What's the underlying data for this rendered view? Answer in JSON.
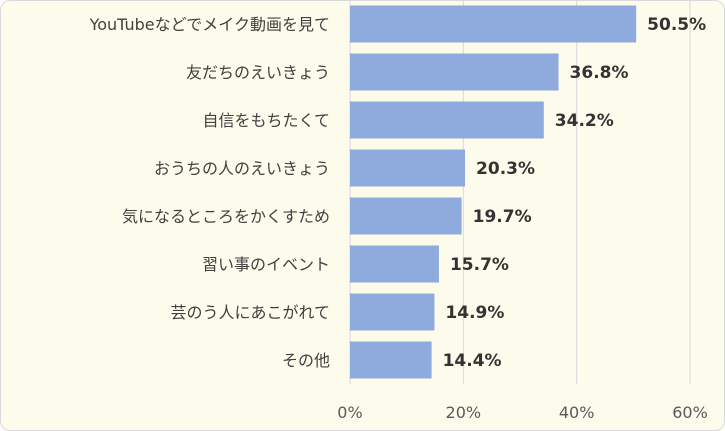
{
  "chart_data": {
    "type": "bar",
    "orientation": "horizontal",
    "categories": [
      "YouTubeなどでメイク動画を見て",
      "友だちのえいきょう",
      "自信をもちたくて",
      "おうちの人のえいきょう",
      "気になるところをかくすため",
      "習い事のイベント",
      "芸のう人にあこがれて",
      "その他"
    ],
    "values": [
      50.5,
      36.8,
      34.2,
      20.3,
      19.7,
      15.7,
      14.9,
      14.4
    ],
    "value_labels": [
      "50.5%",
      "36.8%",
      "34.2%",
      "20.3%",
      "19.7%",
      "15.7%",
      "14.9%",
      "14.4%"
    ],
    "xlim": [
      0,
      60
    ],
    "xticks": [
      0,
      20,
      40,
      60
    ],
    "xtick_labels": [
      "0%",
      "20%",
      "40%",
      "60%"
    ],
    "grid": true,
    "bar_color": "#8faadc",
    "grid_color": "#d9d9d9",
    "background": "#fdfcec"
  }
}
